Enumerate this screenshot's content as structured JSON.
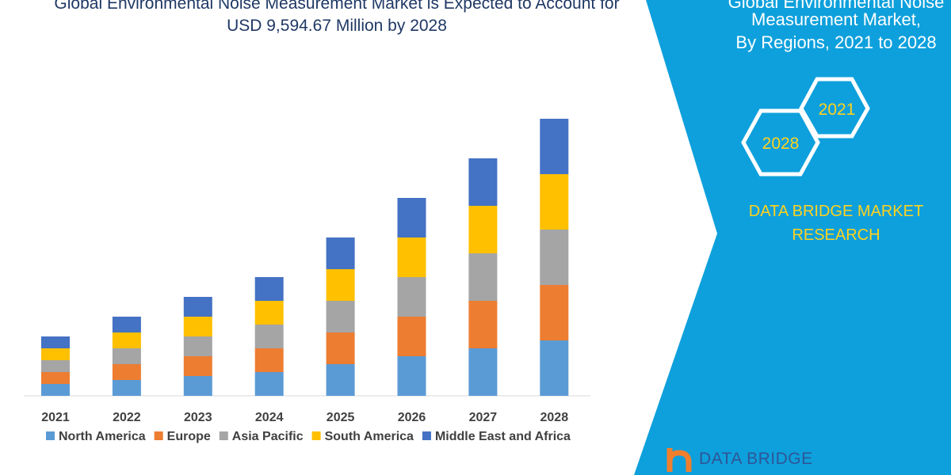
{
  "header": {
    "title_line1": "Global Environmental Noise Measurement Market is Expected to Account for",
    "title_line2": "USD 9,594.67 Million by 2028"
  },
  "panel": {
    "line1": "Global Environmental Noise",
    "line2": "Measurement Market,",
    "line3": "By Regions, 2021 to 2028",
    "hex_a": "2021",
    "hex_b": "2028",
    "brand_line1": "DATA BRIDGE MARKET",
    "brand_line2": "RESEARCH",
    "logo_text": "DATA BRIDGE",
    "panel_color": "#0ea0dc"
  },
  "chart_data": {
    "type": "bar",
    "stacked": true,
    "title": "",
    "xlabel": "",
    "ylabel": "",
    "categories": [
      "2021",
      "2022",
      "2023",
      "2024",
      "2025",
      "2026",
      "2027",
      "2028"
    ],
    "legend_position": "bottom",
    "grid": false,
    "series": [
      {
        "name": "North America",
        "color": "#5b9bd5",
        "values": [
          3,
          4,
          5,
          6,
          8,
          10,
          12,
          14
        ]
      },
      {
        "name": "Europe",
        "color": "#ed7d31",
        "values": [
          3,
          4,
          5,
          6,
          8,
          10,
          12,
          14
        ]
      },
      {
        "name": "Asia Pacific",
        "color": "#a5a5a5",
        "values": [
          3,
          4,
          5,
          6,
          8,
          10,
          12,
          14
        ]
      },
      {
        "name": "South America",
        "color": "#ffc000",
        "values": [
          3,
          4,
          5,
          6,
          8,
          10,
          12,
          14
        ]
      },
      {
        "name": "Middle East and Africa",
        "color": "#4472c4",
        "values": [
          3,
          4,
          5,
          6,
          8,
          10,
          12,
          14
        ]
      }
    ]
  }
}
